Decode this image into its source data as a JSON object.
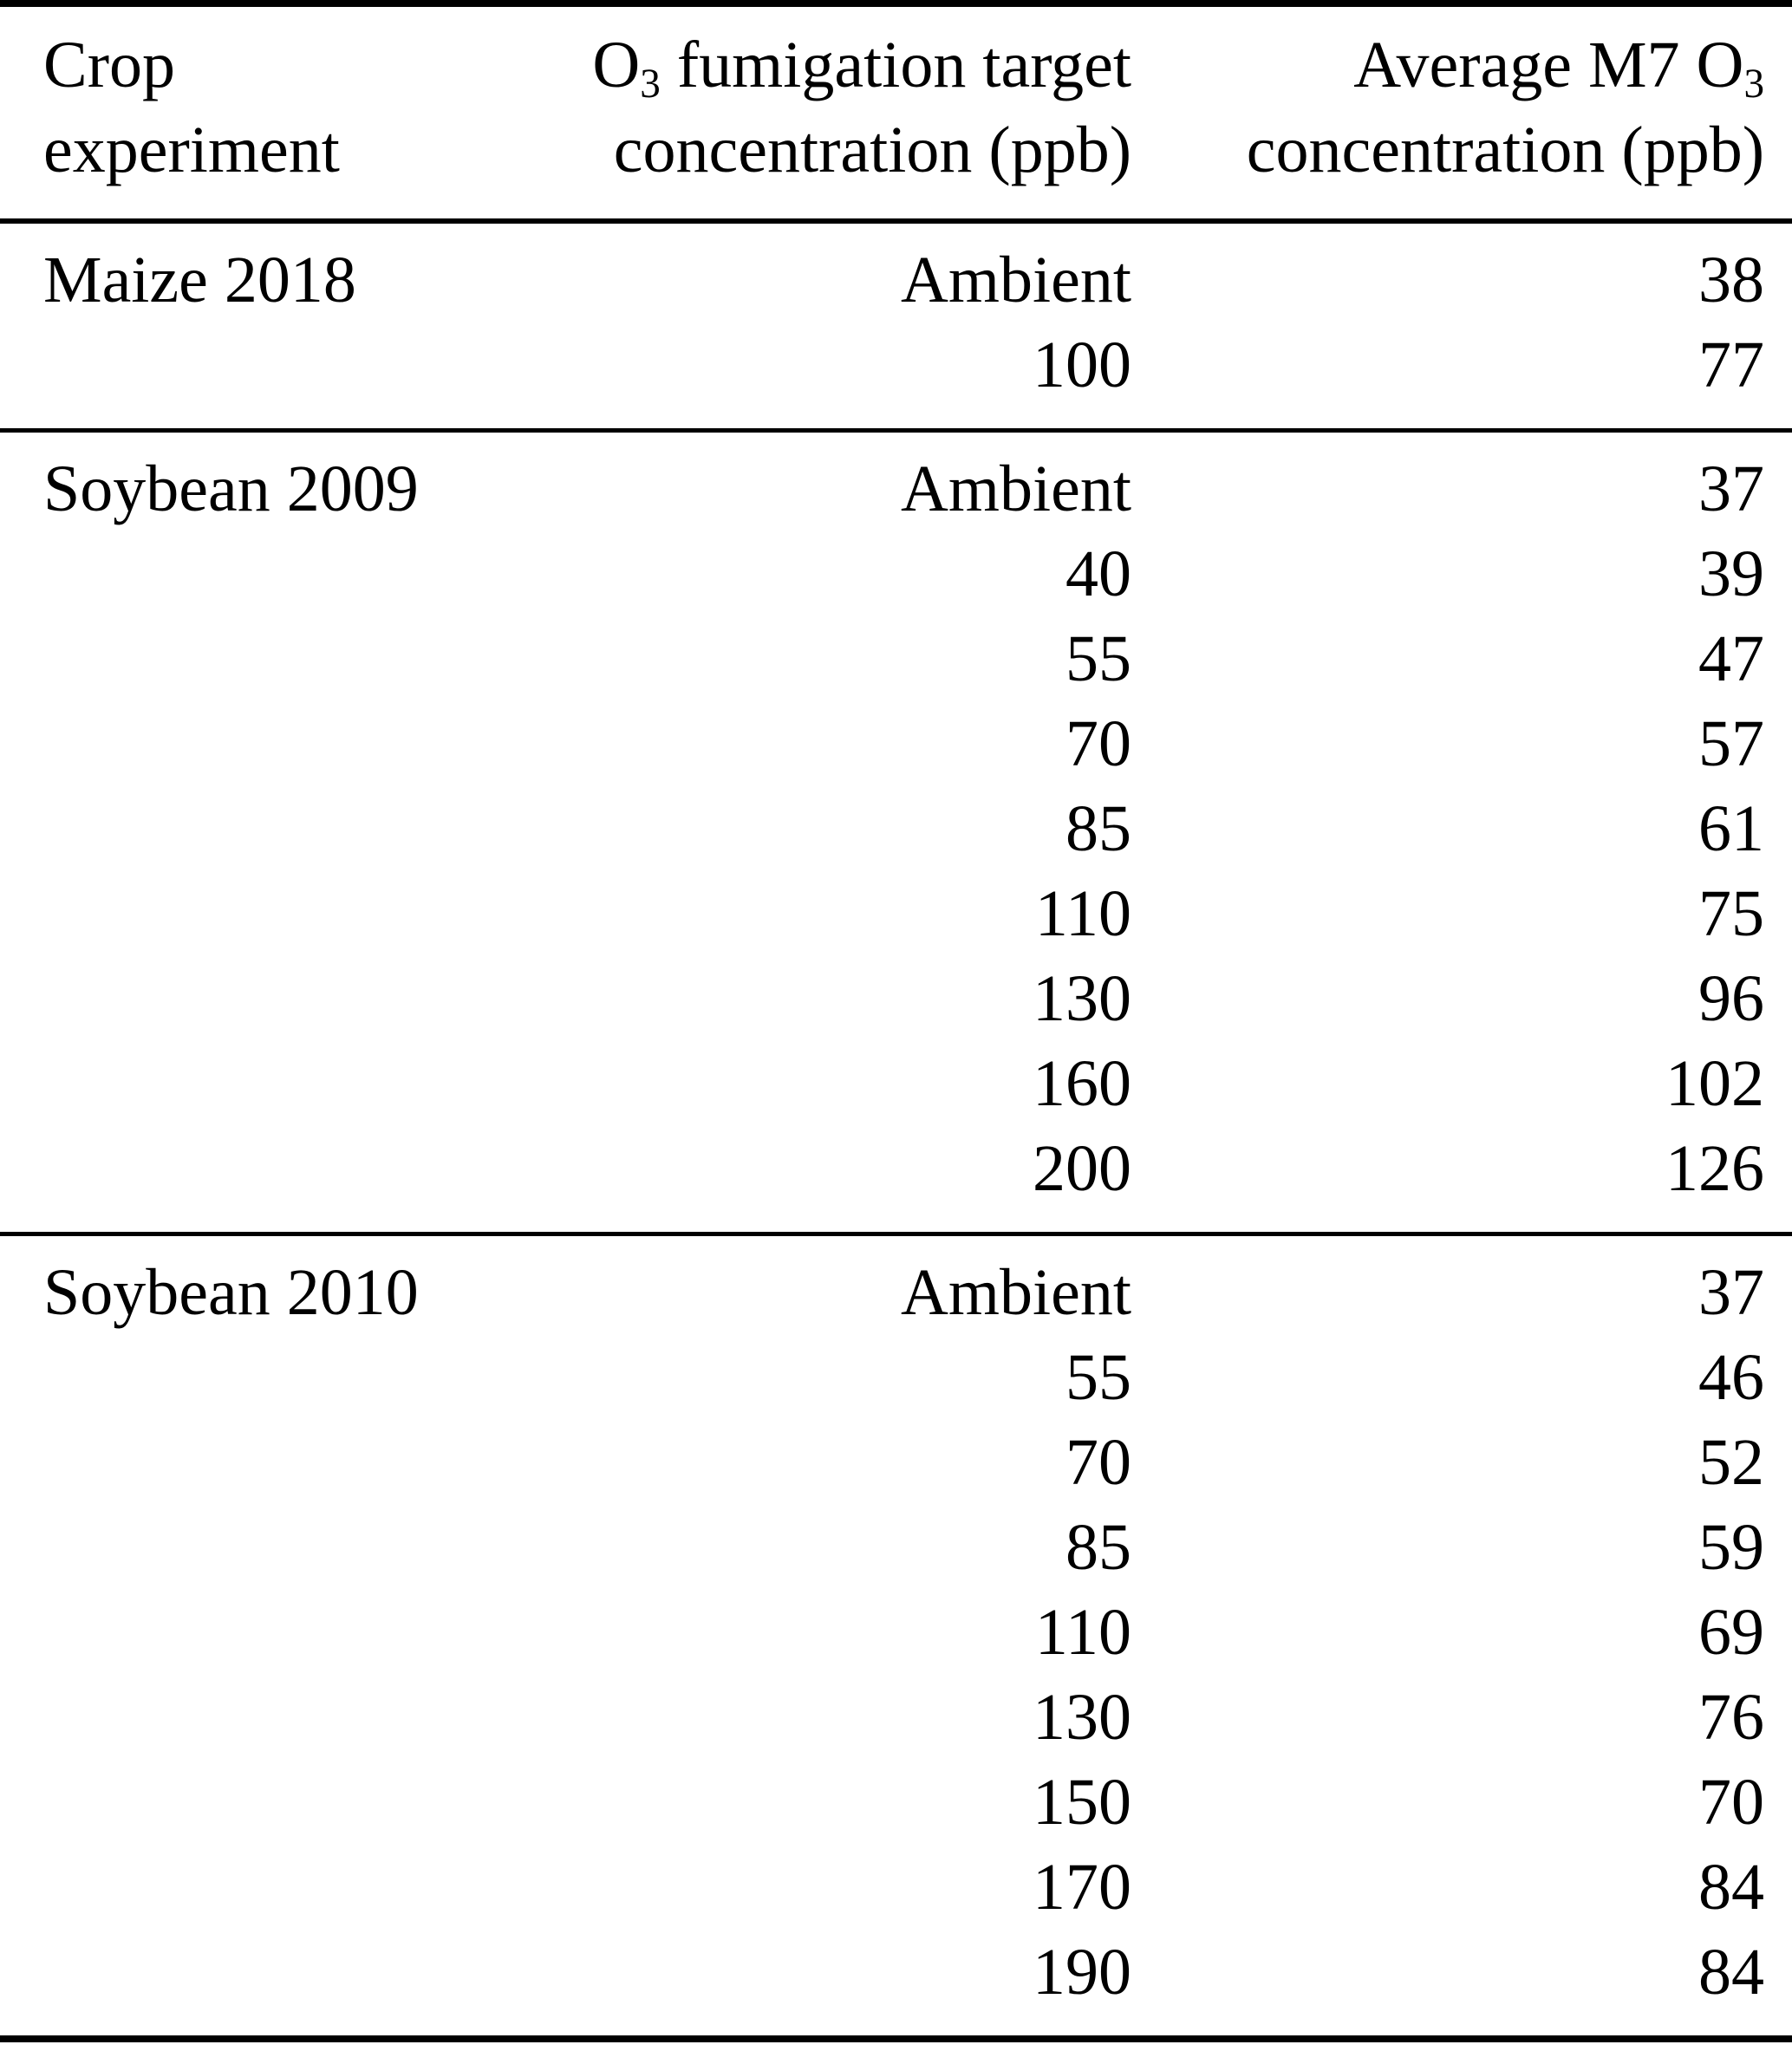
{
  "page": {
    "background_color": "#ffffff",
    "text_color": "#000000",
    "rule_color": "#000000"
  },
  "table": {
    "header": {
      "col1": {
        "line1": "Crop",
        "line2": "experiment"
      },
      "col2": {
        "line1_pre": "O",
        "line1_sub": "3",
        "line1_post": " fumigation target",
        "line2": "concentration (ppb)"
      },
      "col3": {
        "line1_pre": "Average M7 O",
        "line1_sub": "3",
        "line1_post": "",
        "line2": "concentration (ppb)"
      }
    },
    "groups": [
      {
        "crop": "Maize 2018",
        "rows": [
          {
            "target": "Ambient",
            "m7": "38"
          },
          {
            "target": "100",
            "m7": "77"
          }
        ]
      },
      {
        "crop": "Soybean 2009",
        "rows": [
          {
            "target": "Ambient",
            "m7": "37"
          },
          {
            "target": "40",
            "m7": "39"
          },
          {
            "target": "55",
            "m7": "47"
          },
          {
            "target": "70",
            "m7": "57"
          },
          {
            "target": "85",
            "m7": "61"
          },
          {
            "target": "110",
            "m7": "75"
          },
          {
            "target": "130",
            "m7": "96"
          },
          {
            "target": "160",
            "m7": "102"
          },
          {
            "target": "200",
            "m7": "126"
          }
        ]
      },
      {
        "crop": "Soybean 2010",
        "rows": [
          {
            "target": "Ambient",
            "m7": "37"
          },
          {
            "target": "55",
            "m7": "46"
          },
          {
            "target": "70",
            "m7": "52"
          },
          {
            "target": "85",
            "m7": "59"
          },
          {
            "target": "110",
            "m7": "69"
          },
          {
            "target": "130",
            "m7": "76"
          },
          {
            "target": "150",
            "m7": "70"
          },
          {
            "target": "170",
            "m7": "84"
          },
          {
            "target": "190",
            "m7": "84"
          }
        ]
      }
    ]
  }
}
